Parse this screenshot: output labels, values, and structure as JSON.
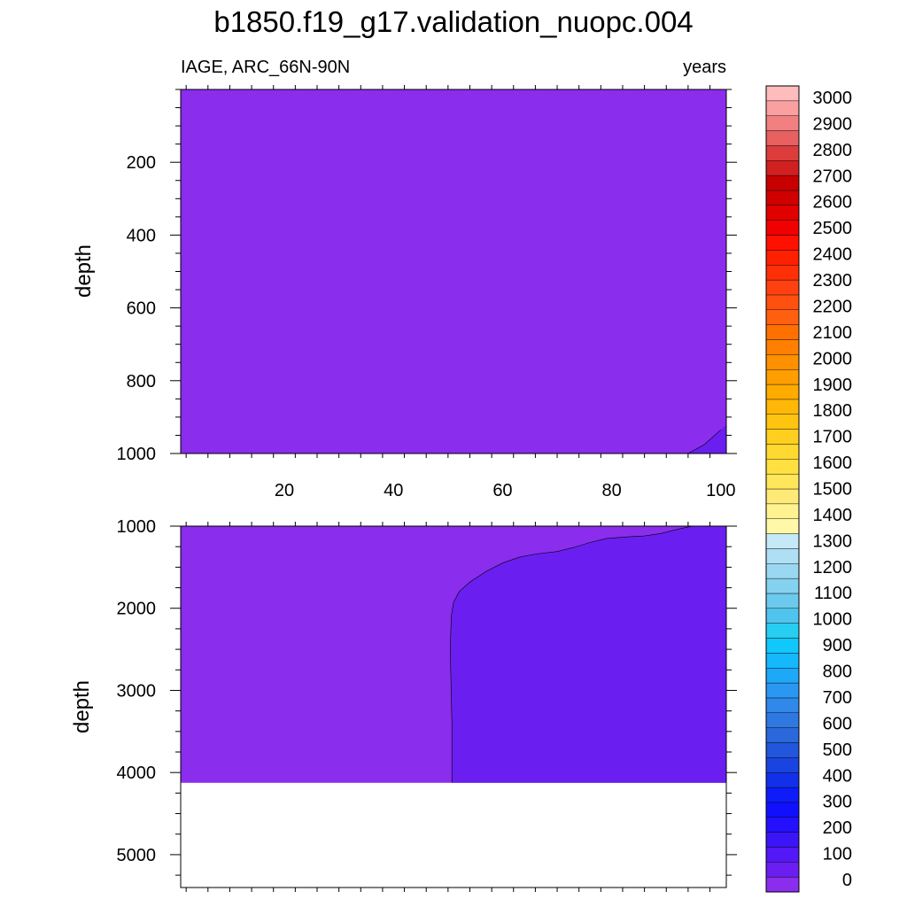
{
  "chart_data": {
    "type": "heatmap",
    "title": "b1850.f19_g17.validation_nuopc.004",
    "left_string": "IAGE, ARC_66N-90N",
    "right_string": "years",
    "xlabel": "",
    "x_ticks": [
      20,
      40,
      60,
      80,
      100
    ],
    "xlim": [
      1,
      101
    ],
    "panels": [
      {
        "name": "upper",
        "ylabel": "depth",
        "ylim": [
          0,
          1000
        ],
        "y_ticks": [
          200,
          400,
          600,
          800,
          1000
        ],
        "background_level": "0-50",
        "contours": [
          {
            "level": "50-100",
            "outline": [
              [
                94,
                1000
              ],
              [
                97,
                975
              ],
              [
                100,
                935
              ],
              [
                101,
                920
              ],
              [
                101,
                1000
              ]
            ]
          }
        ]
      },
      {
        "name": "lower",
        "ylabel": "depth",
        "ylim": [
          1000,
          5400
        ],
        "y_ticks": [
          1000,
          2000,
          3000,
          4000,
          5000
        ],
        "data_bottom": 4125,
        "background_level": "0-50",
        "contours": [
          {
            "level": "50-100",
            "outline": [
              [
                50.7,
                4125
              ],
              [
                50.7,
                3400
              ],
              [
                50.4,
                2500
              ],
              [
                50.6,
                2100
              ],
              [
                51,
                1930
              ],
              [
                52,
                1800
              ],
              [
                54,
                1680
              ],
              [
                57,
                1550
              ],
              [
                60,
                1450
              ],
              [
                63,
                1380
              ],
              [
                66,
                1340
              ],
              [
                70,
                1310
              ],
              [
                73,
                1260
              ],
              [
                76,
                1200
              ],
              [
                79,
                1150
              ],
              [
                83,
                1130
              ],
              [
                86,
                1120
              ],
              [
                89,
                1090
              ],
              [
                92,
                1040
              ],
              [
                94,
                1010
              ],
              [
                95,
                1000
              ],
              [
                101,
                1000
              ],
              [
                101,
                4125
              ]
            ]
          }
        ]
      }
    ],
    "colorbar": {
      "labels": [
        "0",
        "100",
        "200",
        "300",
        "400",
        "500",
        "600",
        "700",
        "800",
        "900",
        "1000",
        "1100",
        "1200",
        "1300",
        "1400",
        "1500",
        "1600",
        "1700",
        "1800",
        "1900",
        "2000",
        "2100",
        "2200",
        "2300",
        "2400",
        "2500",
        "2600",
        "2700",
        "2800",
        "2900",
        "3000"
      ],
      "colors": [
        "#8a2ded",
        "#6a1ff0",
        "#5318f5",
        "#3c14f8",
        "#2410fc",
        "#1010ff",
        "#0d1cf8",
        "#1230ea",
        "#1a44e0",
        "#2256dc",
        "#2a68dc",
        "#2f78e2",
        "#2f88ea",
        "#2a98f2",
        "#1ea8f8",
        "#14b8fb",
        "#10c8fc",
        "#28cdf2",
        "#4fc5ee",
        "#6ccaee",
        "#85d2f0",
        "#9ad8f2",
        "#afdff4",
        "#c5e9f6",
        "#fff8a8",
        "#fff290",
        "#ffea78",
        "#ffe65a",
        "#ffe040",
        "#ffd830",
        "#ffcf20",
        "#ffc410",
        "#ffb808",
        "#ffab00",
        "#ff9e00",
        "#ff9000",
        "#ff8000",
        "#ff7000",
        "#ff6010",
        "#ff5010",
        "#ff4010",
        "#ff3008",
        "#ff2000",
        "#ff1000",
        "#f00000",
        "#e00000",
        "#d00000",
        "#c80000",
        "#d02020",
        "#dc3c3c",
        "#e86060",
        "#f28080",
        "#faa0a0",
        "#ffbcbc"
      ]
    }
  }
}
